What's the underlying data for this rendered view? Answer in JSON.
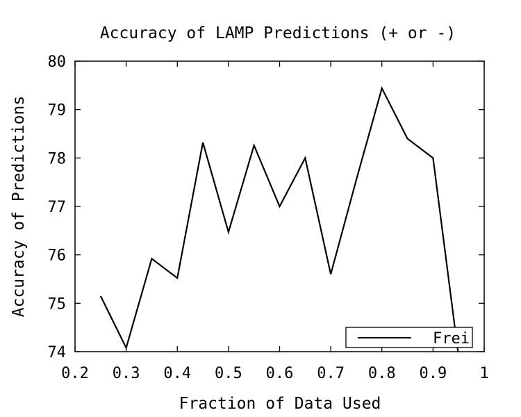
{
  "chart_data": {
    "type": "line",
    "title": "Accuracy of LAMP Predictions (+ or -)",
    "xlabel": "Fraction of Data Used",
    "ylabel": "Accuracy of Predictions",
    "xlim": [
      0.2,
      1.0
    ],
    "ylim": [
      74,
      80
    ],
    "xticks": [
      "0.2",
      "0.3",
      "0.4",
      "0.5",
      "0.6",
      "0.7",
      "0.8",
      "0.9",
      "1"
    ],
    "yticks": [
      "74",
      "75",
      "76",
      "77",
      "78",
      "79",
      "80"
    ],
    "grid": false,
    "legend_position": "bottom-right",
    "series": [
      {
        "name": "Frei",
        "color": "#000000",
        "x": [
          0.25,
          0.3,
          0.35,
          0.4,
          0.45,
          0.5,
          0.55,
          0.6,
          0.65,
          0.7,
          0.75,
          0.8,
          0.85,
          0.9,
          0.95
        ],
        "y": [
          75.15,
          74.08,
          75.92,
          75.52,
          78.32,
          76.47,
          78.26,
          77.0,
          78.0,
          75.6,
          77.55,
          79.44,
          78.4,
          78.0,
          73.9
        ]
      }
    ]
  }
}
